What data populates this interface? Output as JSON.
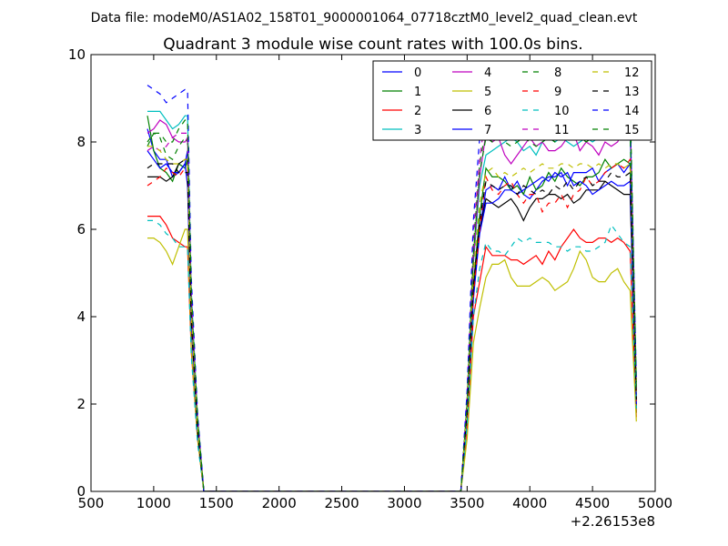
{
  "chart_data": {
    "type": "line",
    "suptitle": "Data file: modeM0/AS1A02_158T01_9000001064_07718cztM0_level2_quad_clean.evt",
    "title": "Quadrant 3 module wise count rates with 100.0s bins.",
    "xlabel": "",
    "ylabel": "",
    "xlim": [
      500,
      5000
    ],
    "ylim": [
      0,
      10
    ],
    "x_offset_label": "+2.26153e8",
    "xticks": [
      500,
      1000,
      1500,
      2000,
      2500,
      3000,
      3500,
      4000,
      4500,
      5000
    ],
    "xtick_labels": [
      "500",
      "1000",
      "1500",
      "2000",
      "2500",
      "3000",
      "3500",
      "4000",
      "4500",
      "5000"
    ],
    "yticks": [
      0,
      2,
      4,
      6,
      8,
      10
    ],
    "ytick_labels": [
      "0",
      "2",
      "4",
      "6",
      "8",
      "10"
    ],
    "legend_position": "top-right",
    "legend_columns": 4,
    "x": [
      950,
      1000,
      1050,
      1100,
      1150,
      1200,
      1250,
      1270,
      1300,
      1350,
      1400,
      1450,
      1500,
      1600,
      1800,
      2000,
      2200,
      2400,
      2600,
      2800,
      3000,
      3200,
      3400,
      3450,
      3500,
      3550,
      3600,
      3650,
      3700,
      3750,
      3800,
      3850,
      3900,
      3950,
      4000,
      4050,
      4100,
      4150,
      4200,
      4250,
      4300,
      4350,
      4400,
      4450,
      4500,
      4550,
      4600,
      4650,
      4700,
      4750,
      4800,
      4850
    ],
    "series": [
      {
        "name": "0",
        "color": "#0000ff",
        "dash": "solid",
        "values": [
          8.3,
          7.8,
          7.6,
          7.6,
          7.2,
          7.3,
          7.5,
          7.8,
          4.0,
          1.5,
          0.0,
          0.0,
          0.0,
          0.0,
          0.0,
          0.0,
          0.0,
          0.0,
          0.0,
          0.0,
          0.0,
          0.0,
          0.0,
          0.0,
          1.8,
          4.6,
          6.0,
          6.9,
          7.0,
          6.9,
          7.2,
          6.9,
          7.1,
          6.8,
          6.7,
          6.9,
          7.1,
          7.2,
          7.2,
          7.3,
          7.0,
          7.3,
          7.3,
          7.3,
          7.4,
          7.1,
          7.3,
          7.4,
          7.5,
          7.3,
          7.5,
          1.9
        ]
      },
      {
        "name": "1",
        "color": "#008000",
        "dash": "solid",
        "values": [
          8.6,
          7.8,
          7.4,
          7.3,
          7.1,
          7.5,
          7.4,
          7.6,
          4.2,
          1.6,
          0.0,
          0.0,
          0.0,
          0.0,
          0.0,
          0.0,
          0.0,
          0.0,
          0.0,
          0.0,
          0.0,
          0.0,
          0.0,
          0.0,
          1.8,
          4.7,
          6.3,
          7.4,
          7.2,
          7.2,
          7.1,
          6.9,
          7.0,
          6.8,
          7.2,
          6.9,
          7.0,
          7.3,
          7.1,
          7.4,
          7.2,
          7.1,
          7.0,
          7.2,
          7.2,
          7.3,
          7.6,
          7.4,
          7.5,
          7.6,
          7.5,
          1.8
        ]
      },
      {
        "name": "2",
        "color": "#ff0000",
        "dash": "solid",
        "values": [
          6.3,
          6.3,
          6.3,
          6.1,
          5.8,
          5.7,
          5.6,
          5.6,
          3.2,
          1.2,
          0.0,
          0.0,
          0.0,
          0.0,
          0.0,
          0.0,
          0.0,
          0.0,
          0.0,
          0.0,
          0.0,
          0.0,
          0.0,
          0.0,
          1.5,
          4.0,
          4.8,
          5.6,
          5.4,
          5.4,
          5.4,
          5.3,
          5.3,
          5.2,
          5.3,
          5.4,
          5.2,
          5.5,
          5.3,
          5.6,
          5.8,
          6.0,
          5.8,
          5.7,
          5.7,
          5.8,
          5.8,
          5.7,
          5.8,
          5.7,
          5.5,
          1.7
        ]
      },
      {
        "name": "3",
        "color": "#00bfbf",
        "dash": "solid",
        "values": [
          8.7,
          8.7,
          8.7,
          8.5,
          8.3,
          8.4,
          8.6,
          8.6,
          4.6,
          1.7,
          0.0,
          0.0,
          0.0,
          0.0,
          0.0,
          0.0,
          0.0,
          0.0,
          0.0,
          0.0,
          0.0,
          0.0,
          0.0,
          0.0,
          2.0,
          5.2,
          7.0,
          7.7,
          7.8,
          7.9,
          8.0,
          8.1,
          8.0,
          7.8,
          7.9,
          7.7,
          8.0,
          8.1,
          8.0,
          8.1,
          8.0,
          7.9,
          8.0,
          8.1,
          8.0,
          8.1,
          8.2,
          8.3,
          8.2,
          8.3,
          8.2,
          2.2
        ]
      },
      {
        "name": "4",
        "color": "#bf00bf",
        "dash": "solid",
        "values": [
          8.2,
          8.3,
          8.5,
          8.4,
          8.1,
          8.0,
          8.0,
          8.1,
          4.4,
          1.6,
          0.0,
          0.0,
          0.0,
          0.0,
          0.0,
          0.0,
          0.0,
          0.0,
          0.0,
          0.0,
          0.0,
          0.0,
          0.0,
          0.0,
          2.0,
          5.3,
          7.2,
          8.2,
          8.0,
          8.1,
          7.7,
          7.5,
          7.7,
          7.9,
          8.1,
          7.9,
          8.0,
          7.8,
          7.8,
          7.9,
          8.1,
          8.2,
          7.8,
          8.0,
          7.9,
          7.7,
          8.0,
          7.9,
          8.0,
          8.3,
          8.6,
          2.3
        ]
      },
      {
        "name": "5",
        "color": "#bfbf00",
        "dash": "solid",
        "values": [
          5.8,
          5.8,
          5.7,
          5.5,
          5.2,
          5.6,
          6.0,
          6.0,
          3.3,
          1.2,
          0.0,
          0.0,
          0.0,
          0.0,
          0.0,
          0.0,
          0.0,
          0.0,
          0.0,
          0.0,
          0.0,
          0.0,
          0.0,
          0.0,
          1.2,
          3.4,
          4.2,
          4.9,
          5.2,
          5.2,
          5.3,
          4.9,
          4.7,
          4.7,
          4.7,
          4.8,
          4.9,
          4.8,
          4.6,
          4.7,
          4.8,
          5.1,
          5.5,
          5.3,
          4.9,
          4.8,
          4.8,
          5.0,
          5.1,
          4.8,
          4.6,
          1.6
        ]
      },
      {
        "name": "6",
        "color": "#000000",
        "dash": "solid",
        "values": [
          7.2,
          7.2,
          7.2,
          7.1,
          7.2,
          7.5,
          7.6,
          7.6,
          4.0,
          1.5,
          0.0,
          0.0,
          0.0,
          0.0,
          0.0,
          0.0,
          0.0,
          0.0,
          0.0,
          0.0,
          0.0,
          0.0,
          0.0,
          0.0,
          1.9,
          4.6,
          6.0,
          6.7,
          6.6,
          6.5,
          6.6,
          6.7,
          6.5,
          6.2,
          6.5,
          6.7,
          6.7,
          6.8,
          6.8,
          6.7,
          6.8,
          6.6,
          6.7,
          6.9,
          6.9,
          6.9,
          7.1,
          7.0,
          6.9,
          6.8,
          6.8,
          2.1
        ]
      },
      {
        "name": "7",
        "color": "#0000ff",
        "dash": "solid",
        "values": [
          7.8,
          7.6,
          7.4,
          7.5,
          7.3,
          7.3,
          7.5,
          7.0,
          3.8,
          1.4,
          0.0,
          0.0,
          0.0,
          0.0,
          0.0,
          0.0,
          0.0,
          0.0,
          0.0,
          0.0,
          0.0,
          0.0,
          0.0,
          0.0,
          1.7,
          4.4,
          5.9,
          6.6,
          6.6,
          6.7,
          6.9,
          6.9,
          6.8,
          6.9,
          7.0,
          7.1,
          7.2,
          7.1,
          7.3,
          7.2,
          7.3,
          7.0,
          7.1,
          7.0,
          6.8,
          6.9,
          7.0,
          7.1,
          7.0,
          7.0,
          7.1,
          2.0
        ]
      },
      {
        "name": "8",
        "color": "#008000",
        "dash": "dashed",
        "values": [
          7.9,
          8.2,
          8.1,
          7.7,
          7.6,
          7.9,
          8.1,
          8.0,
          4.3,
          1.6,
          0.0,
          0.0,
          0.0,
          0.0,
          0.0,
          0.0,
          0.0,
          0.0,
          0.0,
          0.0,
          0.0,
          0.0,
          0.0,
          0.0,
          2.1,
          5.6,
          7.5,
          8.3,
          8.5,
          8.3,
          8.7,
          8.9,
          8.7,
          8.5,
          8.6,
          8.4,
          8.5,
          8.5,
          8.4,
          8.3,
          8.5,
          8.4,
          8.5,
          8.4,
          8.4,
          8.3,
          8.3,
          8.2,
          8.4,
          8.6,
          9.0,
          2.5
        ]
      },
      {
        "name": "9",
        "color": "#ff0000",
        "dash": "dashed",
        "values": [
          7.0,
          7.1,
          7.2,
          7.4,
          7.3,
          7.2,
          7.4,
          7.4,
          4.0,
          1.5,
          0.0,
          0.0,
          0.0,
          0.0,
          0.0,
          0.0,
          0.0,
          0.0,
          0.0,
          0.0,
          0.0,
          0.0,
          0.0,
          0.0,
          1.8,
          4.5,
          6.0,
          7.2,
          6.9,
          6.8,
          7.0,
          7.1,
          6.8,
          6.6,
          6.8,
          6.8,
          6.4,
          6.6,
          6.6,
          6.8,
          6.5,
          6.8,
          6.9,
          7.2,
          7.0,
          7.1,
          7.3,
          7.4,
          7.5,
          7.4,
          7.6,
          2.0
        ]
      },
      {
        "name": "10",
        "color": "#00bfbf",
        "dash": "dashed",
        "values": [
          6.2,
          6.2,
          6.1,
          5.9,
          5.8,
          5.6,
          5.6,
          5.6,
          3.1,
          1.1,
          0.0,
          0.0,
          0.0,
          0.0,
          0.0,
          0.0,
          0.0,
          0.0,
          0.0,
          0.0,
          0.0,
          0.0,
          0.0,
          0.0,
          1.5,
          4.0,
          5.1,
          5.7,
          5.5,
          5.5,
          5.4,
          5.6,
          5.8,
          5.7,
          5.8,
          5.7,
          5.7,
          5.7,
          5.6,
          5.6,
          5.5,
          5.6,
          5.6,
          5.5,
          5.5,
          5.6,
          5.7,
          6.1,
          5.9,
          5.7,
          5.6,
          1.9
        ]
      },
      {
        "name": "11",
        "color": "#bf00bf",
        "dash": "dashed",
        "values": [
          7.8,
          7.9,
          7.8,
          7.9,
          8.1,
          8.2,
          8.2,
          8.2,
          4.5,
          1.7,
          0.0,
          0.0,
          0.0,
          0.0,
          0.0,
          0.0,
          0.0,
          0.0,
          0.0,
          0.0,
          0.0,
          0.0,
          0.0,
          0.0,
          2.2,
          5.9,
          7.6,
          8.7,
          8.3,
          8.4,
          8.6,
          8.2,
          8.7,
          8.4,
          8.6,
          8.4,
          8.7,
          8.6,
          8.5,
          8.6,
          8.4,
          8.7,
          8.8,
          8.5,
          8.6,
          8.8,
          8.7,
          8.5,
          8.6,
          8.7,
          8.5,
          2.4
        ]
      },
      {
        "name": "12",
        "color": "#bfbf00",
        "dash": "dashed",
        "values": [
          7.9,
          7.9,
          7.8,
          7.6,
          7.5,
          7.5,
          7.6,
          7.6,
          4.1,
          1.5,
          0.0,
          0.0,
          0.0,
          0.0,
          0.0,
          0.0,
          0.0,
          0.0,
          0.0,
          0.0,
          0.0,
          0.0,
          0.0,
          0.0,
          1.9,
          5.0,
          6.6,
          7.3,
          7.4,
          7.2,
          7.3,
          7.2,
          7.3,
          7.4,
          7.3,
          7.4,
          7.5,
          7.4,
          7.4,
          7.5,
          7.5,
          7.4,
          7.5,
          7.5,
          7.4,
          7.5,
          7.4,
          7.5,
          7.5,
          7.4,
          7.5,
          2.2
        ]
      },
      {
        "name": "13",
        "color": "#000000",
        "dash": "dashed",
        "values": [
          7.4,
          7.5,
          7.5,
          7.5,
          7.5,
          7.3,
          7.3,
          7.3,
          3.9,
          1.4,
          0.0,
          0.0,
          0.0,
          0.0,
          0.0,
          0.0,
          0.0,
          0.0,
          0.0,
          0.0,
          0.0,
          0.0,
          0.0,
          0.0,
          1.8,
          4.7,
          6.2,
          7.1,
          7.0,
          6.9,
          7.0,
          7.0,
          6.8,
          7.0,
          6.9,
          6.8,
          6.9,
          6.8,
          7.0,
          6.9,
          7.1,
          6.9,
          7.1,
          7.2,
          7.0,
          7.1,
          7.1,
          7.3,
          7.2,
          7.2,
          7.3,
          2.1
        ]
      },
      {
        "name": "14",
        "color": "#0000ff",
        "dash": "dashed",
        "values": [
          9.3,
          9.2,
          9.1,
          8.9,
          9.0,
          9.1,
          9.2,
          9.2,
          4.9,
          1.8,
          0.0,
          0.0,
          0.0,
          0.0,
          0.0,
          0.0,
          0.0,
          0.0,
          0.0,
          0.0,
          0.0,
          0.0,
          0.0,
          0.0,
          2.3,
          6.2,
          8.1,
          8.8,
          8.5,
          8.6,
          8.4,
          8.6,
          8.5,
          8.6,
          8.3,
          8.5,
          8.4,
          8.6,
          8.5,
          8.3,
          8.5,
          8.4,
          8.5,
          8.3,
          8.4,
          8.4,
          8.5,
          8.4,
          8.6,
          8.5,
          8.7,
          2.6
        ]
      },
      {
        "name": "15",
        "color": "#008000",
        "dash": "dashed",
        "values": [
          8.0,
          8.2,
          8.2,
          8.0,
          8.0,
          8.3,
          8.5,
          8.5,
          4.6,
          1.7,
          0.0,
          0.0,
          0.0,
          0.0,
          0.0,
          0.0,
          0.0,
          0.0,
          0.0,
          0.0,
          0.0,
          0.0,
          0.0,
          0.0,
          2.0,
          5.4,
          7.3,
          8.1,
          8.0,
          8.1,
          8.0,
          7.9,
          8.0,
          8.1,
          8.0,
          7.9,
          8.0,
          8.1,
          8.0,
          8.1,
          8.0,
          8.2,
          8.1,
          8.0,
          8.1,
          8.1,
          8.2,
          8.2,
          8.1,
          8.2,
          8.3,
          2.3
        ]
      }
    ]
  }
}
